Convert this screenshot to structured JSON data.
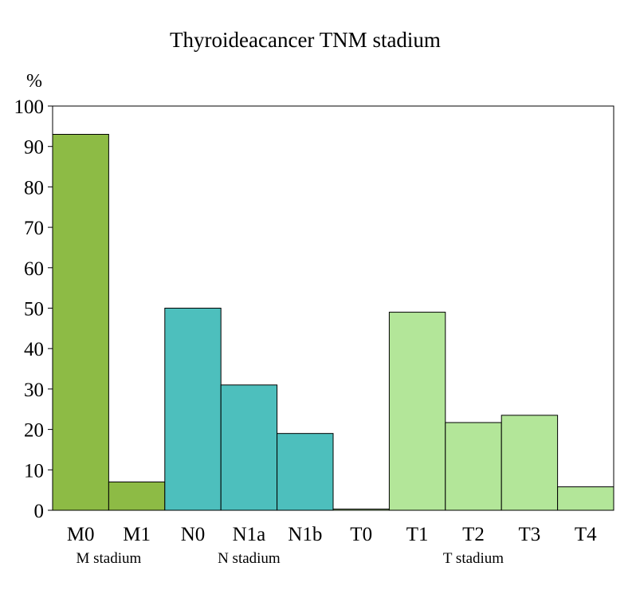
{
  "chart_data": {
    "type": "bar",
    "title": "Thyroideacancer TNM stadium",
    "ylabel": "%",
    "xlabel": "",
    "ylim": [
      0,
      100
    ],
    "yticks": [
      0,
      10,
      20,
      30,
      40,
      50,
      60,
      70,
      80,
      90,
      100
    ],
    "grid": false,
    "legend": "none",
    "categories": [
      "M0",
      "M1",
      "N0",
      "N1a",
      "N1b",
      "T0",
      "T1",
      "T2",
      "T3",
      "T4"
    ],
    "values": [
      93,
      7,
      50,
      31,
      19,
      0.3,
      49,
      21.7,
      23.5,
      5.8
    ],
    "groups": [
      {
        "label": "M stadium",
        "start": 0,
        "end": 1,
        "color": "#8dbb45"
      },
      {
        "label": "N stadium",
        "start": 2,
        "end": 4,
        "color": "#4dbfbd"
      },
      {
        "label": "T stadium",
        "start": 5,
        "end": 9,
        "color": "#b3e699"
      }
    ]
  }
}
